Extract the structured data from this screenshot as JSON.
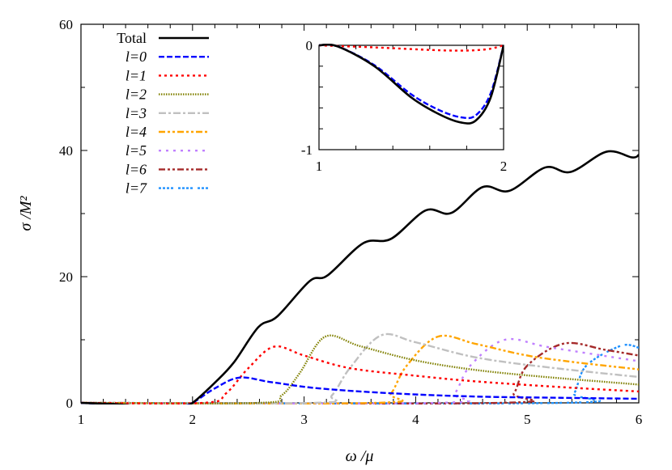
{
  "chart_data": [
    {
      "type": "line",
      "xlabel": "ω /μ",
      "ylabel": "σ /M²",
      "xlim": [
        1,
        6
      ],
      "ylim": [
        0,
        60
      ],
      "xticks": [
        "1",
        "2",
        "3",
        "4",
        "5",
        "6"
      ],
      "yticks": [
        "0",
        "20",
        "40",
        "60"
      ],
      "grid": false,
      "legend_position": "top-left",
      "series": [
        {
          "name": "Total",
          "color": "#000000",
          "style": "solid",
          "x": [
            1,
            1.3,
            1.5,
            1.75,
            1.9,
            2,
            2.2,
            2.37,
            2.59,
            2.76,
            3.05,
            3.21,
            3.53,
            3.78,
            4.09,
            4.32,
            4.6,
            4.84,
            5.16,
            5.39,
            5.71,
            5.94,
            6
          ],
          "y": [
            0,
            -0.2,
            -0.5,
            -0.74,
            -0.55,
            0,
            3.2,
            6.4,
            12,
            13.7,
            19.3,
            20.2,
            25.3,
            26,
            30.5,
            30.1,
            34.2,
            33.6,
            37.3,
            36.6,
            39.8,
            38.9,
            39.3
          ]
        },
        {
          "name": "l=0",
          "color": "#0000ff",
          "style": "dashed",
          "x": [
            1,
            1.5,
            1.75,
            1.9,
            2,
            2.2,
            2.42,
            2.7,
            3.13,
            3.8,
            4.54,
            5.3,
            6
          ],
          "y": [
            0,
            -0.48,
            -0.69,
            -0.5,
            0,
            2.3,
            4.0,
            3.3,
            2.3,
            1.5,
            1.0,
            0.8,
            0.65
          ]
        },
        {
          "name": "l=1",
          "color": "#ff0000",
          "style": "dotted",
          "x": [
            1,
            2.1,
            2.3,
            2.5,
            2.73,
            3.0,
            3.41,
            4.0,
            4.54,
            5.3,
            6
          ],
          "y": [
            0,
            0,
            1.5,
            5.5,
            8.9,
            7.5,
            5.5,
            4.3,
            3.4,
            2.5,
            1.8
          ]
        },
        {
          "name": "l=2",
          "color": "#808000",
          "style": "dotted-fine",
          "x": [
            1,
            2.6,
            2.8,
            2.96,
            3.19,
            3.5,
            3.98,
            4.5,
            5.1,
            6
          ],
          "y": [
            0,
            0,
            1.2,
            4.7,
            10.5,
            9.0,
            6.8,
            5.3,
            4.2,
            2.9
          ]
        },
        {
          "name": "l=3",
          "color": "#c0c0c0",
          "style": "dash-dot",
          "x": [
            1,
            3.1,
            3.25,
            3.41,
            3.69,
            4.0,
            4.54,
            5.2,
            6
          ],
          "y": [
            0,
            0,
            1.2,
            5.5,
            10.7,
            9.6,
            7.2,
            5.6,
            4.1
          ]
        },
        {
          "name": "l=4",
          "color": "#ffa500",
          "style": "dash-dot-dot",
          "x": [
            1,
            3.65,
            3.78,
            3.92,
            4.2,
            4.55,
            5.1,
            6
          ],
          "y": [
            0,
            0,
            1.5,
            5.9,
            10.5,
            9.3,
            7.2,
            5.3
          ]
        },
        {
          "name": "l=5",
          "color": "#c080ff",
          "style": "sparse-dotted",
          "x": [
            1,
            4.2,
            4.35,
            4.49,
            4.8,
            5.2,
            6
          ],
          "y": [
            0,
            0,
            1.5,
            5.9,
            10.0,
            8.8,
            6.6
          ]
        },
        {
          "name": "l=6",
          "color": "#a52a2a",
          "style": "dash-dot-dot",
          "x": [
            1,
            4.75,
            4.88,
            5.0,
            5.33,
            5.7,
            6
          ],
          "y": [
            0,
            0,
            1.5,
            5.9,
            9.4,
            8.4,
            7.5
          ]
        },
        {
          "name": "l=7",
          "color": "#1e90ff",
          "style": "grouped-dots",
          "x": [
            1,
            5.3,
            5.42,
            5.53,
            5.84,
            6
          ],
          "y": [
            0,
            0,
            1.5,
            5.9,
            9.05,
            8.75
          ]
        }
      ]
    },
    {
      "type": "line",
      "title": "",
      "xlim": [
        1,
        2
      ],
      "ylim": [
        -1,
        0
      ],
      "xticks": [
        "1",
        "2"
      ],
      "yticks": [
        "0",
        "-1"
      ],
      "series": [
        {
          "name": "Total",
          "color": "#000000",
          "style": "solid",
          "x": [
            1,
            1.1,
            1.3,
            1.5,
            1.65,
            1.77,
            1.85,
            1.93,
            2
          ],
          "y": [
            0,
            -0.01,
            -0.2,
            -0.5,
            -0.66,
            -0.74,
            -0.72,
            -0.5,
            0
          ]
        },
        {
          "name": "l=0",
          "color": "#0000ff",
          "style": "dashed",
          "x": [
            1,
            1.1,
            1.3,
            1.5,
            1.65,
            1.77,
            1.85,
            1.93,
            2
          ],
          "y": [
            0,
            -0.01,
            -0.19,
            -0.47,
            -0.62,
            -0.69,
            -0.67,
            -0.46,
            0
          ]
        },
        {
          "name": "l=1",
          "color": "#ff0000",
          "style": "dotted",
          "x": [
            1,
            1.3,
            1.7,
            1.9,
            2
          ],
          "y": [
            0,
            -0.02,
            -0.05,
            -0.04,
            0
          ]
        }
      ]
    }
  ]
}
